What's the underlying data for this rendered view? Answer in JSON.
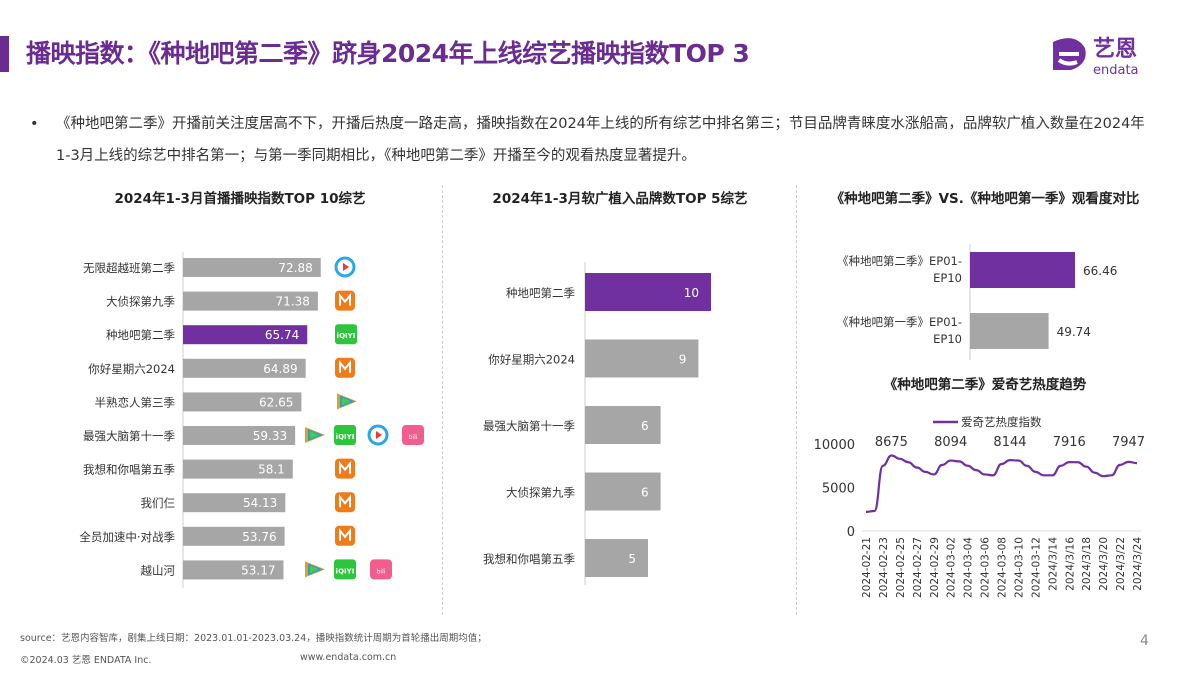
{
  "header": {
    "title": "播映指数：《种地吧第二季》跻身2024年上线综艺播映指数TOP 3",
    "logo_text": "艺恩",
    "logo_subtext": "endata",
    "accent_color": "#6b2c91"
  },
  "bullet": {
    "marker": "•",
    "text": "《种地吧第二季》开播前关注度居高不下，开播后热度一路走高，播映指数在2024年上线的所有综艺中排名第三；节目品牌青睐度水涨船高，品牌软广植入数量在2024年1-3月上线的综艺中排名第一；与第一季同期相比，《种地吧第二季》开播至今的观看热度显著提升。"
  },
  "chart_data": [
    {
      "type": "bar",
      "orientation": "horizontal",
      "title": "2024年1-3月首播播映指数TOP 10综艺",
      "categories": [
        "无限超越班第二季",
        "大侦探第九季",
        "种地吧第二季",
        "你好星期六2024",
        "半熟恋人第三季",
        "最强大脑第十一季",
        "我想和你唱第五季",
        "我们仨",
        "全员加速中·对战季",
        "越山河"
      ],
      "values": [
        72.88,
        71.38,
        65.74,
        64.89,
        62.65,
        59.33,
        58.1,
        54.13,
        53.76,
        53.17
      ],
      "value_labels": [
        "72.88",
        "71.38",
        "65.74",
        "64.89",
        "62.65",
        "59.33",
        "58.1",
        "54.13",
        "53.76",
        "53.17"
      ],
      "platforms": [
        [
          "youku-icon"
        ],
        [
          "mango-tv-icon"
        ],
        [
          "iqiyi-icon"
        ],
        [
          "mango-tv-icon"
        ],
        [
          "tencent-video-icon"
        ],
        [
          "tencent-video-icon",
          "iqiyi-icon",
          "youku-icon",
          "bilibili-icon"
        ],
        [
          "mango-tv-icon"
        ],
        [
          "mango-tv-icon"
        ],
        [
          "mango-tv-icon"
        ],
        [
          "tencent-video-icon",
          "iqiyi-icon",
          "bilibili-icon"
        ]
      ],
      "highlight_index": 2,
      "highlight_color": "#7030a0",
      "bar_color": "#a6a6a6"
    },
    {
      "type": "bar",
      "orientation": "horizontal",
      "title": "2024年1-3月软广植入品牌数TOP 5综艺",
      "categories": [
        "种地吧第二季",
        "你好星期六2024",
        "最强大脑第十一季",
        "大侦探第九季",
        "我想和你唱第五季"
      ],
      "values": [
        10,
        9,
        6,
        6,
        5
      ],
      "highlight_index": 0,
      "highlight_color": "#7030a0",
      "bar_color": "#a6a6a6"
    },
    {
      "type": "bar",
      "orientation": "horizontal",
      "title": "《种地吧第二季》VS.《种地吧第一季》观看度对比",
      "categories": [
        "《种地吧第二季》EP01-EP10",
        "《种地吧第一季》EP01-EP10"
      ],
      "values": [
        66.46,
        49.74
      ],
      "value_labels": [
        "66.46",
        "49.74"
      ],
      "highlight_index": 0,
      "highlight_color": "#7030a0",
      "bar_color": "#a6a6a6"
    },
    {
      "type": "line",
      "title": "《种地吧第二季》爱奇艺热度趋势",
      "legend": "top",
      "series": [
        {
          "name": "爱奇艺热度指数",
          "color": "#7030a0",
          "values": [
            2200,
            2300,
            7500,
            8675,
            8300,
            7900,
            7300,
            6800,
            6500,
            7600,
            8094,
            8000,
            7500,
            7000,
            6500,
            6400,
            7700,
            8144,
            8100,
            7500,
            6800,
            6400,
            6400,
            7500,
            7916,
            7900,
            7400,
            6700,
            6300,
            6400,
            7600,
            7947,
            7800
          ]
        }
      ],
      "annotations": [
        {
          "index": 3,
          "label": "8675"
        },
        {
          "index": 10,
          "label": "8094"
        },
        {
          "index": 17,
          "label": "8144"
        },
        {
          "index": 24,
          "label": "7916"
        },
        {
          "index": 31,
          "label": "7947"
        }
      ],
      "x_tick_labels": [
        "2024-02-21",
        "2024-02-23",
        "2024-02-25",
        "2024-02-27",
        "2024-02-29",
        "2024-03-02",
        "2024-03-04",
        "2024-03-06",
        "2024-03-08",
        "2024-03-10",
        "2024-03-12",
        "2024/3/14",
        "2024/3/16",
        "2024/3/18",
        "2024/3/20",
        "2024/3/22",
        "2024/3/24"
      ],
      "y_ticks": [
        "0",
        "5000",
        "10000"
      ],
      "ylim": [
        0,
        10000
      ],
      "grid": false
    }
  ],
  "footer": {
    "source": "source：艺恩内容智库，剧集上线日期：2023.01.01-2023.03.24，播映指数统计周期为首轮播出周期均值；",
    "copyright": "©2024.03  艺恩 ENDATA Inc.",
    "url": "www.endata.com.cn",
    "page": "4"
  }
}
